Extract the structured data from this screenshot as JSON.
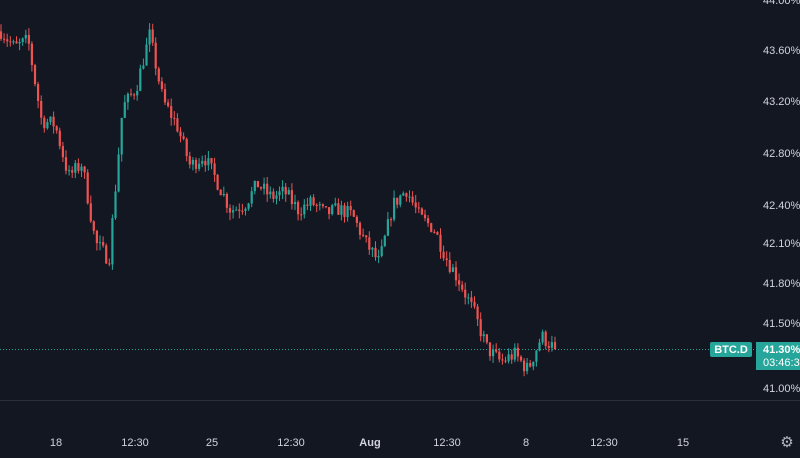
{
  "chart_data": {
    "type": "candlestick",
    "symbol": "BTC.D",
    "last_price": "41.30%",
    "countdown": "03:46:3",
    "y_axis": {
      "min": 40.88,
      "max": 44.0,
      "tick_labels": [
        {
          "value": 44.0,
          "label": "44.00%"
        },
        {
          "value": 43.6,
          "label": "43.60%"
        },
        {
          "value": 43.2,
          "label": "43.20%"
        },
        {
          "value": 42.8,
          "label": "42.80%"
        },
        {
          "value": 42.4,
          "label": "42.40%"
        },
        {
          "value": 42.1,
          "label": "42.10%"
        },
        {
          "value": 41.8,
          "label": "41.80%"
        },
        {
          "value": 41.5,
          "label": "41.50%"
        },
        {
          "value": 41.0,
          "label": "41.00%"
        }
      ]
    },
    "x_axis": {
      "tick_labels": [
        {
          "label": "18",
          "bold": false
        },
        {
          "label": "12:30",
          "bold": false
        },
        {
          "label": "25",
          "bold": false
        },
        {
          "label": "12:30",
          "bold": false
        },
        {
          "label": "Aug",
          "bold": true
        },
        {
          "label": "12:30",
          "bold": false
        },
        {
          "label": "8",
          "bold": false
        },
        {
          "label": "12:30",
          "bold": false
        },
        {
          "label": "15",
          "bold": false
        }
      ]
    },
    "colors": {
      "background": "#131722",
      "up": "#26a69a",
      "down": "#ef5350",
      "text": "#d1d4dc",
      "price_line": "#26a69a",
      "tag_bg": "#26a69a"
    },
    "keypoints": [
      43.75,
      43.62,
      43.68,
      43.05,
      43.02,
      42.62,
      42.72,
      42.1,
      41.98,
      43.15,
      43.3,
      43.72,
      43.2,
      43.02,
      42.7,
      42.78,
      42.58,
      42.36,
      42.4,
      42.56,
      42.46,
      42.5,
      42.36,
      42.42,
      42.33,
      42.37,
      42.32,
      42.1,
      41.95,
      42.4,
      42.52,
      42.3,
      42.22,
      41.98,
      41.8,
      41.58,
      41.3,
      41.2,
      41.26,
      41.14,
      41.4,
      41.3
    ]
  },
  "settings_icon": "gear-icon"
}
